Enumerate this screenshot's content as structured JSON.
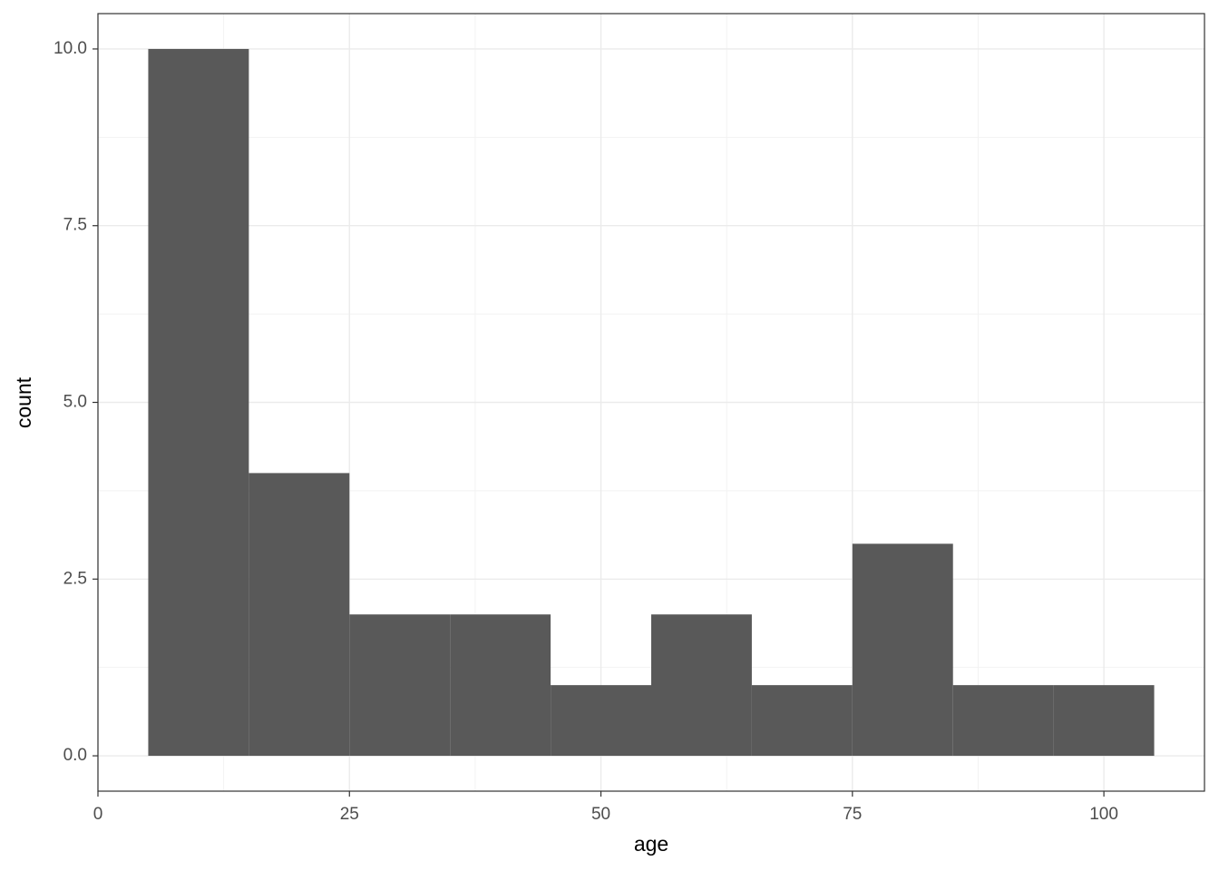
{
  "chart_data": {
    "type": "histogram",
    "x_label": "age",
    "y_label": "count",
    "bins": [
      5,
      15,
      25,
      35,
      45,
      55,
      65,
      75,
      85,
      95,
      105
    ],
    "values": [
      10,
      4,
      2,
      2,
      1,
      2,
      1,
      3,
      1,
      1
    ],
    "color": "#595959",
    "xlim": [
      0,
      110
    ],
    "xticks": [
      0,
      25,
      50,
      75,
      100
    ],
    "ylim": [
      -0.5,
      10.5
    ],
    "yticks": [
      {
        "value": 0,
        "label": "0.0"
      },
      2.5,
      {
        "value": 5,
        "label": "5.0"
      },
      7.5,
      {
        "value": 10,
        "label": "10.0"
      }
    ],
    "grid": true
  }
}
